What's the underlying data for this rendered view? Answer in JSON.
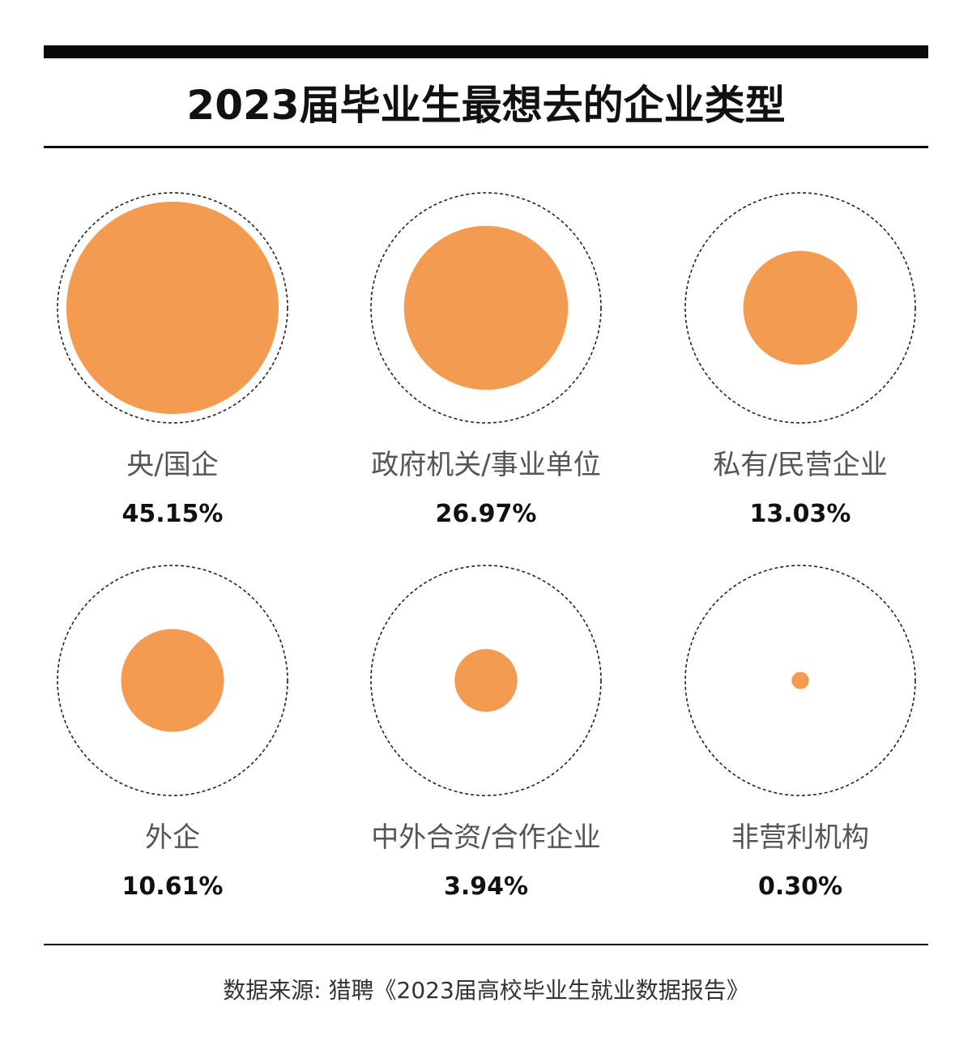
{
  "title": "2023届毕业生最想去的企业类型",
  "source": "数据来源: 猎聘《2023届高校毕业生就业数据报告》",
  "colors": {
    "bubble": "#F39B51",
    "outline": "#222222",
    "rule": "#0a0a0a"
  },
  "chart_data": {
    "type": "bubble",
    "title": "2023届毕业生最想去的企业类型",
    "unit": "%",
    "categories": [
      "央/国企",
      "政府机关/事业单位",
      "私有/民营企业",
      "外企",
      "中外合资/合作企业",
      "非营利机构"
    ],
    "values": [
      45.15,
      26.97,
      13.03,
      10.61,
      3.94,
      0.3
    ],
    "value_labels": [
      "45.15%",
      "26.97%",
      "13.03%",
      "10.61%",
      "3.94%",
      "0.30%"
    ],
    "legend": "none",
    "grid": false
  }
}
